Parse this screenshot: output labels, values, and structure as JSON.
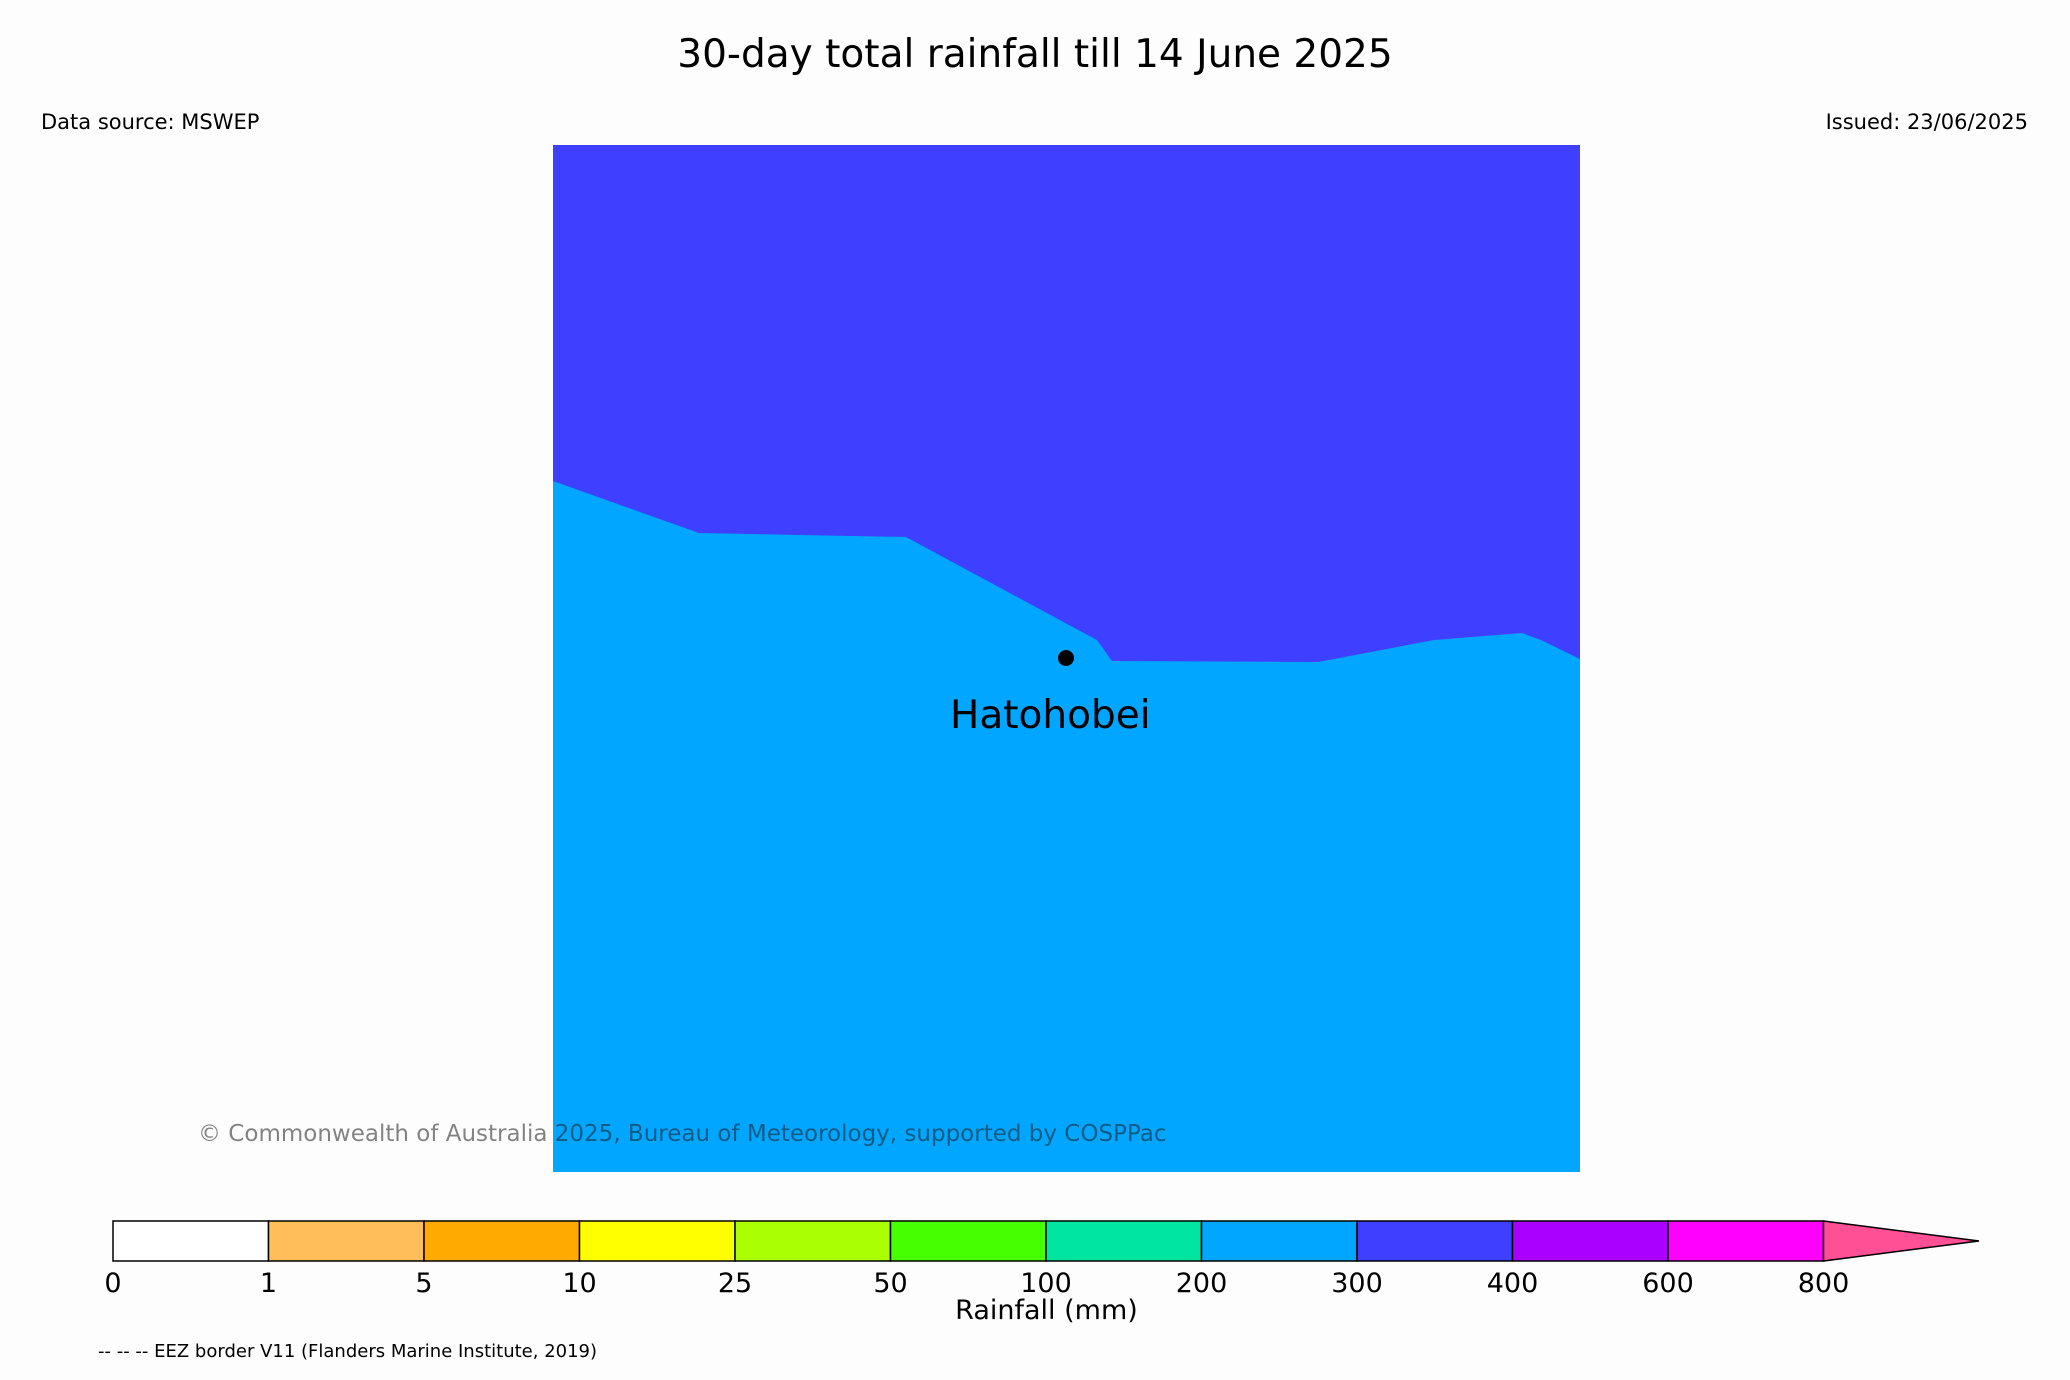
{
  "title": "30-day total rainfall till 14 June 2025",
  "data_source": "Data source: MSWEP",
  "issued": "Issued: 23/06/2025",
  "map": {
    "location": {
      "name": "Hatohobei"
    },
    "region_colors": {
      "upper": "#3f3fff",
      "lower": "#00a6ff"
    },
    "copyright": "© Commonwealth of Australia 2025, Bureau of Meteorology, supported by COSPPac"
  },
  "legend": {
    "ticks": [
      "0",
      "1",
      "5",
      "10",
      "25",
      "50",
      "100",
      "200",
      "300",
      "400",
      "600",
      "800"
    ],
    "colors": [
      "#ffffff",
      "#ffbe5a",
      "#ffaa00",
      "#ffff00",
      "#aaff00",
      "#46ff00",
      "#00e6a0",
      "#00a6ff",
      "#3f3fff",
      "#aa00ff",
      "#ff00ff"
    ],
    "extend_color": "#ff5096",
    "label": "Rainfall (mm)"
  },
  "footnote": "-- -- -- EEZ border V11 (Flanders Marine Institute, 2019)"
}
